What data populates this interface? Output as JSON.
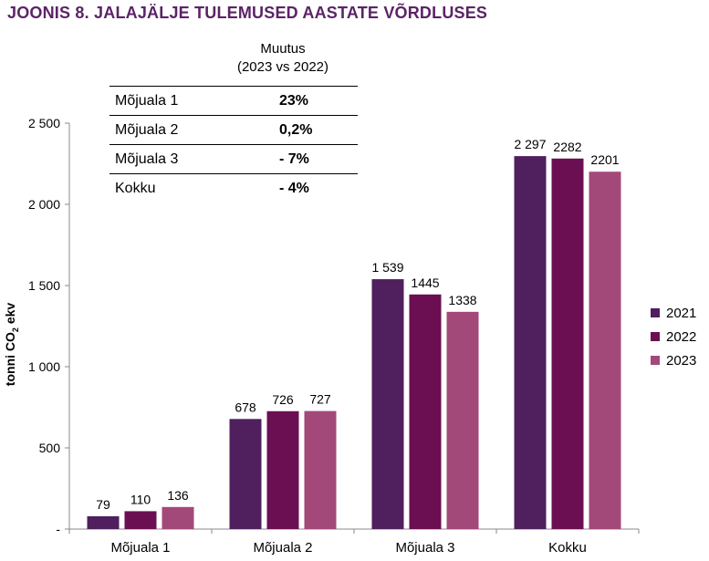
{
  "title": "JOONIS 8. JALAJÄLJE TULEMUSED AASTATE VÕRDLUSES",
  "change_table": {
    "header_line1": "Muutus",
    "header_line2": "(2023 vs 2022)",
    "rows": [
      {
        "label": "Mõjuala 1",
        "value": "23%"
      },
      {
        "label": "Mõjuala 2",
        "value": "0,2%"
      },
      {
        "label": "Mõjuala 3",
        "value": "- 7%"
      },
      {
        "label": "Kokku",
        "value": "- 4%"
      }
    ]
  },
  "chart_data": {
    "type": "bar",
    "ylabel_main": "tonni CO",
    "ylabel_sub": "2",
    "ylabel_tail": " ekv",
    "ylim": [
      0,
      2500
    ],
    "yticks": [
      {
        "value": 0,
        "label": "-"
      },
      {
        "value": 500,
        "label": "500"
      },
      {
        "value": 1000,
        "label": "1 000"
      },
      {
        "value": 1500,
        "label": "1 500"
      },
      {
        "value": 2000,
        "label": "2 000"
      },
      {
        "value": 2500,
        "label": "2 500"
      }
    ],
    "categories": [
      "Mõjuala 1",
      "Mõjuala 2",
      "Mõjuala 3",
      "Kokku"
    ],
    "series": [
      {
        "name": "2021",
        "color": "#4f1f5e",
        "values": [
          79,
          678,
          1539,
          2297
        ],
        "labels": [
          "79",
          "678",
          "1 539",
          "2 297"
        ]
      },
      {
        "name": "2022",
        "color": "#6b0f52",
        "values": [
          110,
          726,
          1445,
          2282
        ],
        "labels": [
          "110",
          "726",
          "1445",
          "2282"
        ]
      },
      {
        "name": "2023",
        "color": "#a3497a",
        "values": [
          136,
          727,
          1338,
          2201
        ],
        "labels": [
          "136",
          "727",
          "1338",
          "2201"
        ]
      }
    ],
    "legend_position": "right",
    "grid": false
  }
}
